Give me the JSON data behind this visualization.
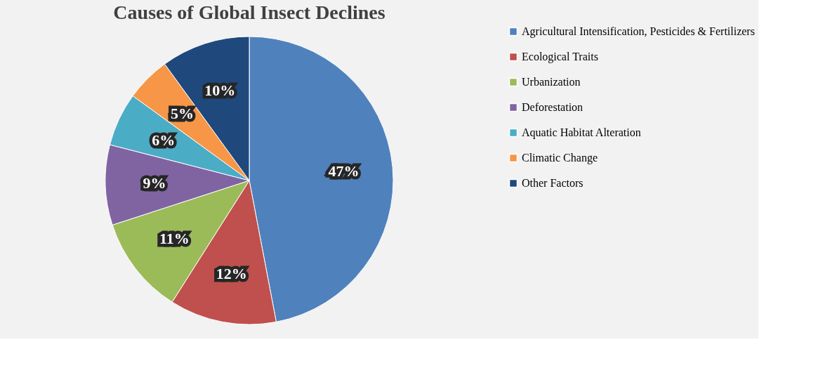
{
  "chart_data": {
    "type": "pie",
    "title": "Causes of Global Insect Declines",
    "categories": [
      "Agricultural Intensification, Pesticides & Fertilizers",
      "Ecological Traits",
      "Urbanization",
      "Deforestation",
      "Aquatic Habitat Alteration",
      "Climatic Change",
      "Other Factors"
    ],
    "values": [
      47,
      12,
      11,
      9,
      6,
      5,
      10
    ],
    "colors": [
      "#4f81bd",
      "#c0504d",
      "#9bbb59",
      "#8064a2",
      "#4bacc6",
      "#f79646",
      "#1f497d"
    ],
    "value_labels": [
      "47%",
      "12%",
      "11%",
      "9%",
      "6%",
      "5%",
      "10%"
    ],
    "legend": "right"
  }
}
